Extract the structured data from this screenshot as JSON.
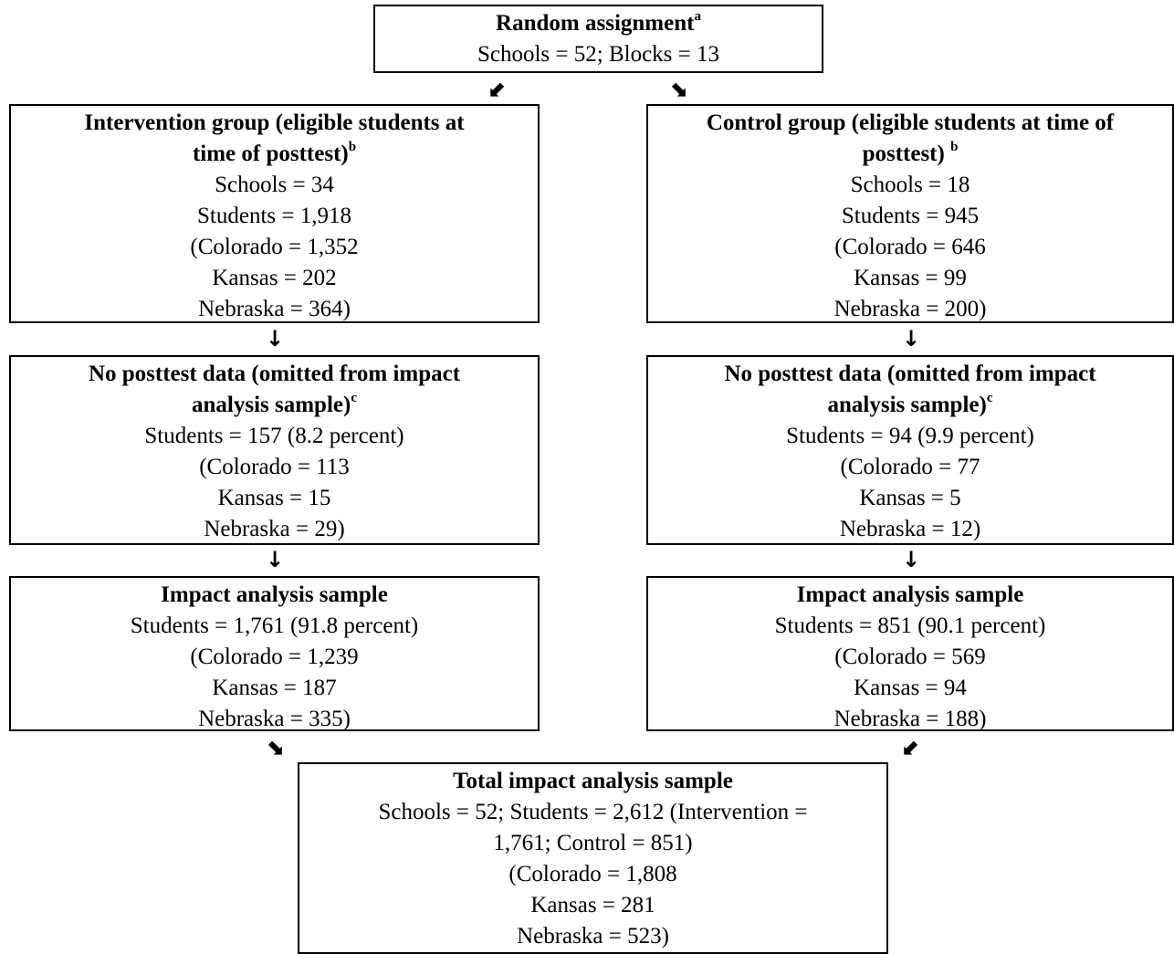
{
  "random_assignment": {
    "title": "Random assignment",
    "note": "a",
    "lines": [
      "Schools = 52; Blocks = 13"
    ]
  },
  "intervention_eligible": {
    "title_lines": [
      "Intervention group (eligible students at",
      "time of posttest)"
    ],
    "note": "b",
    "lines": [
      "Schools = 34",
      "Students = 1,918",
      "(Colorado = 1,352",
      "Kansas = 202",
      "Nebraska = 364)"
    ]
  },
  "control_eligible": {
    "title_lines": [
      "Control group (eligible students at time of",
      "posttest)"
    ],
    "note": "b",
    "lines": [
      "Schools = 18",
      "Students = 945",
      "(Colorado = 646",
      "Kansas = 99",
      "Nebraska = 200)"
    ]
  },
  "intervention_no_posttest": {
    "title_lines": [
      "No posttest data (omitted from impact",
      "analysis sample)"
    ],
    "note": "c",
    "lines": [
      "Students = 157 (8.2 percent)",
      "(Colorado = 113",
      "Kansas = 15",
      "Nebraska = 29)"
    ]
  },
  "control_no_posttest": {
    "title_lines": [
      "No posttest data (omitted from impact",
      "analysis sample)"
    ],
    "note": "c",
    "lines": [
      "Students = 94 (9.9 percent)",
      "(Colorado = 77",
      "Kansas = 5",
      "Nebraska = 12)"
    ]
  },
  "intervention_impact": {
    "title": "Impact analysis sample",
    "lines": [
      "Students = 1,761 (91.8 percent)",
      "(Colorado = 1,239",
      "Kansas = 187",
      "Nebraska = 335)"
    ]
  },
  "control_impact": {
    "title": "Impact analysis sample",
    "lines": [
      "Students = 851 (90.1 percent)",
      "(Colorado = 569",
      "Kansas = 94",
      "Nebraska = 188)"
    ]
  },
  "total_impact": {
    "title": "Total impact analysis sample",
    "lines": [
      "Schools = 52; Students = 2,612 (Intervention =",
      "1,761; Control = 851)",
      "(Colorado = 1,808",
      "Kansas = 281",
      "Nebraska = 523)"
    ]
  },
  "arrows": {
    "down": "↓",
    "down_left": "⬋",
    "down_right": "⬊"
  }
}
